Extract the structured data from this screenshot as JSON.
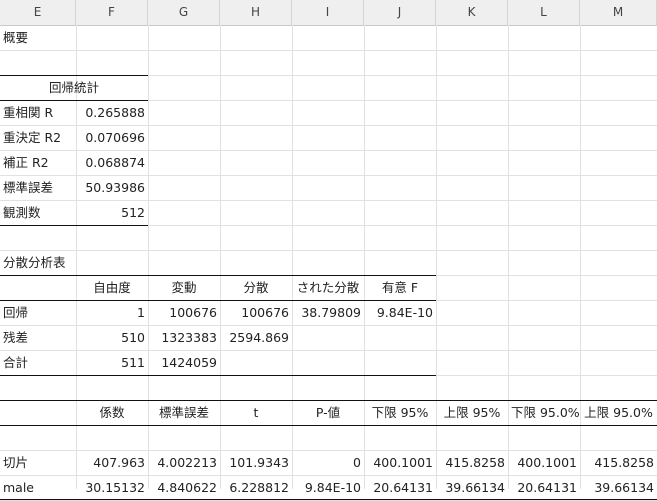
{
  "columns": [
    "E",
    "F",
    "G",
    "H",
    "I",
    "J",
    "K",
    "L",
    "M"
  ],
  "summary_title": "概要",
  "regression": {
    "title": "回帰統計",
    "rows": [
      {
        "label": "重相関 R",
        "value": "0.265888"
      },
      {
        "label": "重決定 R2",
        "value": "0.070696"
      },
      {
        "label": "補正 R2",
        "value": "0.068874"
      },
      {
        "label": "標準誤差",
        "value": "50.93986"
      },
      {
        "label": "観測数",
        "value": "512"
      }
    ]
  },
  "anova": {
    "title": "分散分析表",
    "headers": [
      "",
      "自由度",
      "変動",
      "分散",
      "された分散",
      "有意 F"
    ],
    "rows": [
      [
        "回帰",
        "1",
        "100676",
        "100676",
        "38.79809",
        "9.84E-10"
      ],
      [
        "残差",
        "510",
        "1323383",
        "2594.869",
        "",
        ""
      ],
      [
        "合計",
        "511",
        "1424059",
        "",
        "",
        ""
      ]
    ]
  },
  "coef": {
    "headers": [
      "",
      "係数",
      "標準誤差",
      "t",
      "P-値",
      "下限 95%",
      "上限 95%",
      "下限 95.0%",
      "上限 95.0%"
    ],
    "rows": [
      [
        "切片",
        "407.963",
        "4.002213",
        "101.9343",
        "0",
        "400.1001",
        "415.8258",
        "400.1001",
        "415.8258"
      ],
      [
        "male",
        "30.15132",
        "4.840622",
        "6.228812",
        "9.84E-10",
        "20.64131",
        "39.66134",
        "20.64131",
        "39.66134"
      ]
    ]
  }
}
